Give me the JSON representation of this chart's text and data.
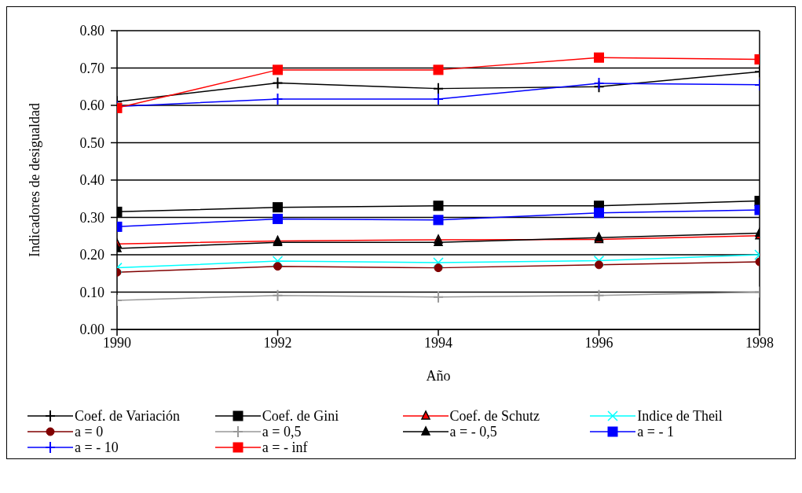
{
  "chart_data": {
    "type": "line",
    "xlabel": "Año",
    "ylabel": "Indicadores de desigualdad",
    "x": [
      1990,
      1992,
      1994,
      1996,
      1998
    ],
    "xlim": [
      1990,
      1998
    ],
    "xticks": [
      1990,
      1992,
      1994,
      1996,
      1998
    ],
    "ylim": [
      0,
      0.8
    ],
    "yticks": [
      {
        "value": 0,
        "label": "0.00"
      },
      {
        "value": 0.1,
        "label": "0.10"
      },
      {
        "value": 0.2,
        "label": "0.20"
      },
      {
        "value": 0.3,
        "label": "0.30"
      },
      {
        "value": 0.4,
        "label": "0.40"
      },
      {
        "value": 0.5,
        "label": "0.50"
      },
      {
        "value": 0.6,
        "label": "0.60"
      },
      {
        "value": 0.7,
        "label": "0.70"
      },
      {
        "value": 0.8,
        "label": "0.80"
      }
    ],
    "grid": "y",
    "legend": "bottom",
    "series": [
      {
        "name": "Coef. de Variación",
        "color": "#000000",
        "marker": "plus",
        "values": [
          0.61,
          0.66,
          0.645,
          0.65,
          0.69
        ]
      },
      {
        "name": "Coef. de Gini",
        "color": "#000000",
        "marker": "square",
        "values": [
          0.315,
          0.327,
          0.331,
          0.331,
          0.344
        ]
      },
      {
        "name": "Coef. de Schutz",
        "color": "#ff0000",
        "marker": "triangle",
        "values": [
          0.229,
          0.237,
          0.24,
          0.241,
          0.251
        ]
      },
      {
        "name": "Indice de Theil",
        "color": "#00ffff",
        "marker": "cross",
        "values": [
          0.165,
          0.183,
          0.179,
          0.184,
          0.2
        ]
      },
      {
        "name": "a = 0",
        "color": "#800000",
        "marker": "circle",
        "values": [
          0.153,
          0.169,
          0.165,
          0.173,
          0.181
        ]
      },
      {
        "name": "a = 0,5",
        "color": "#999999",
        "marker": "plus",
        "values": [
          0.078,
          0.091,
          0.087,
          0.091,
          0.1
        ]
      },
      {
        "name": "a = - 0,5",
        "color": "#000000",
        "marker": "triangle",
        "values": [
          0.217,
          0.233,
          0.233,
          0.246,
          0.258
        ]
      },
      {
        "name": "a = - 1",
        "color": "#0000ff",
        "marker": "square",
        "values": [
          0.275,
          0.296,
          0.293,
          0.312,
          0.32
        ]
      },
      {
        "name": "a = - 10",
        "color": "#0000ff",
        "marker": "plus",
        "values": [
          0.597,
          0.617,
          0.617,
          0.659,
          0.655
        ]
      },
      {
        "name": "a = - inf",
        "color": "#ff0000",
        "marker": "square",
        "values": [
          0.593,
          0.695,
          0.695,
          0.728,
          0.723
        ]
      }
    ]
  }
}
